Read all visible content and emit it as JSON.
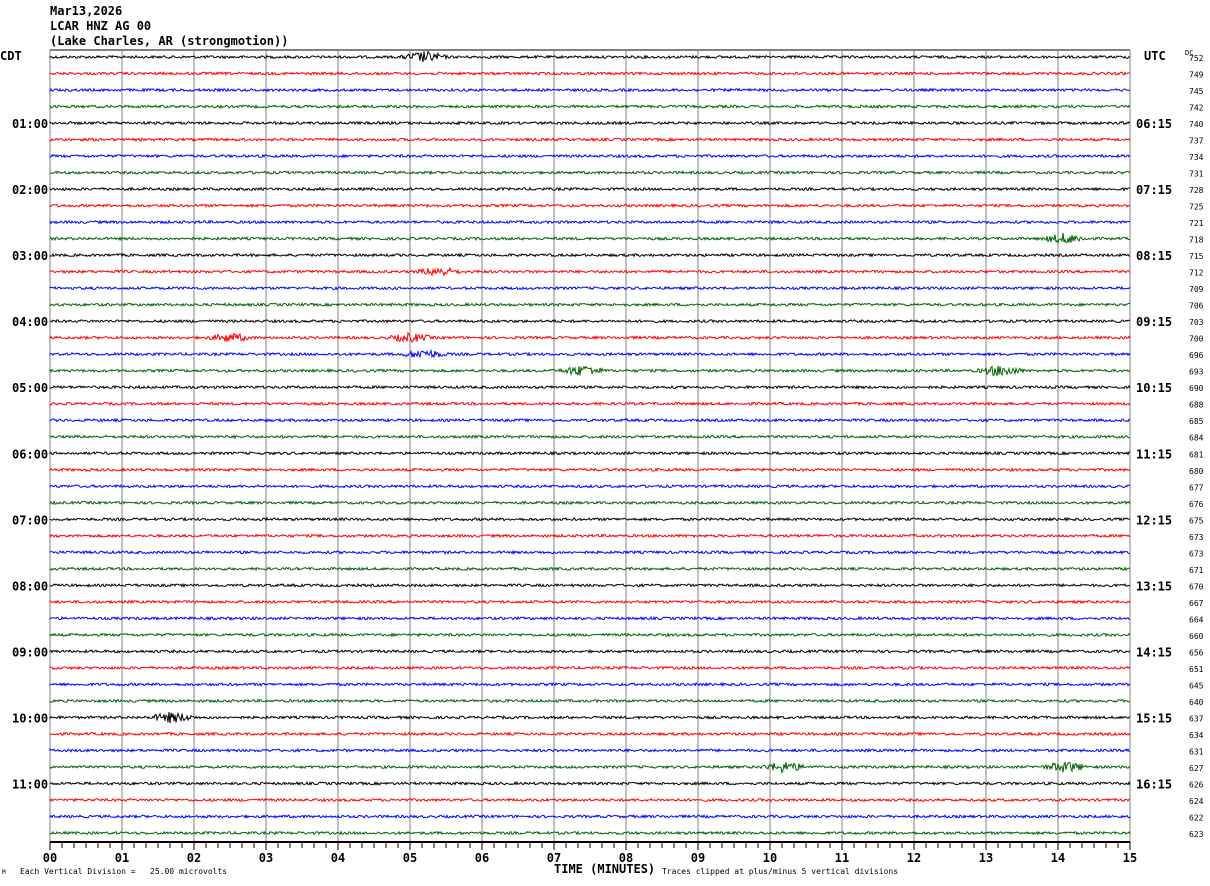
{
  "header": {
    "date": "Mar13,2026",
    "station": "LCAR HNZ AG 00",
    "location": "(Lake Charles, AR (strongmotion))"
  },
  "left_timezone": "CDT",
  "right_timezone": "UTC",
  "dc_label": "DC",
  "footer": {
    "scale_note": "Each Vertical Division =   25.00 microvolts",
    "clip_note": "Traces clipped at plus/minus 5 vertical divisions",
    "corner_mark": "M"
  },
  "colors": {
    "trace_cycle": [
      "#000000",
      "#ff0000",
      "#0000ff",
      "#006400"
    ],
    "grid": "#808080"
  },
  "chart_data": {
    "type": "line",
    "title": "LCAR HNZ AG 00 helicorder",
    "xlabel": "TIME (MINUTES)",
    "xlim": [
      0,
      15
    ],
    "x_ticks": [
      "00",
      "01",
      "02",
      "03",
      "04",
      "05",
      "06",
      "07",
      "08",
      "09",
      "10",
      "11",
      "12",
      "13",
      "14",
      "15"
    ],
    "rows": 48,
    "row_minutes": 15,
    "left_time_labels": [
      "01:00",
      "02:00",
      "03:00",
      "04:00",
      "05:00",
      "06:00",
      "07:00",
      "08:00",
      "09:00",
      "10:00",
      "11:00"
    ],
    "right_time_labels": [
      "06:15",
      "07:15",
      "08:15",
      "09:15",
      "10:15",
      "11:15",
      "12:15",
      "13:15",
      "14:15",
      "15:15",
      "16:15"
    ],
    "dc_offsets": [
      "752",
      "749",
      "745",
      "742",
      "740",
      "737",
      "734",
      "731",
      "728",
      "725",
      "721",
      "718",
      "715",
      "712",
      "709",
      "706",
      "703",
      "700",
      "696",
      "693",
      "690",
      "688",
      "685",
      "684",
      "681",
      "680",
      "677",
      "676",
      "675",
      "673",
      "673",
      "671",
      "670",
      "667",
      "664",
      "660",
      "656",
      "651",
      "645",
      "640",
      "637",
      "634",
      "631",
      "627",
      "626",
      "624",
      "622",
      "623"
    ],
    "events": [
      {
        "row": 0,
        "minute": 5.2,
        "amp": 5
      },
      {
        "row": 11,
        "minute": 14.1,
        "amp": 5
      },
      {
        "row": 13,
        "minute": 5.4,
        "amp": 4
      },
      {
        "row": 17,
        "minute": 2.5,
        "amp": 4
      },
      {
        "row": 17,
        "minute": 5.0,
        "amp": 4
      },
      {
        "row": 18,
        "minute": 5.2,
        "amp": 4
      },
      {
        "row": 19,
        "minute": 7.4,
        "amp": 5
      },
      {
        "row": 19,
        "minute": 13.2,
        "amp": 5
      },
      {
        "row": 40,
        "minute": 1.7,
        "amp": 5
      },
      {
        "row": 43,
        "minute": 10.2,
        "amp": 5
      },
      {
        "row": 43,
        "minute": 14.1,
        "amp": 5
      }
    ]
  }
}
